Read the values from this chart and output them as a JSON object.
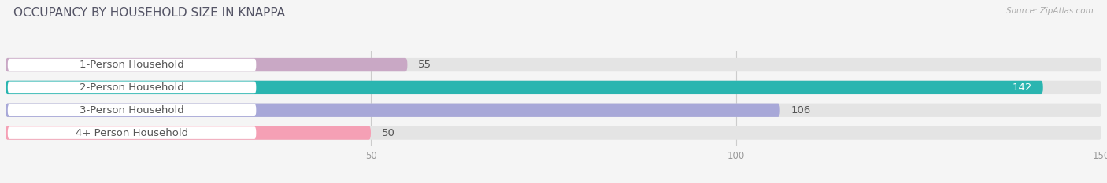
{
  "title": "OCCUPANCY BY HOUSEHOLD SIZE IN KNAPPA",
  "source": "Source: ZipAtlas.com",
  "categories": [
    "1-Person Household",
    "2-Person Household",
    "3-Person Household",
    "4+ Person Household"
  ],
  "values": [
    55,
    142,
    106,
    50
  ],
  "bar_colors": [
    "#c9a8c5",
    "#2ab5b0",
    "#a8a8d8",
    "#f5a0b5"
  ],
  "label_bg_color": "#ffffff",
  "background_color": "#f5f5f5",
  "bar_bg_color": "#e4e4e4",
  "xlim": [
    0,
    150
  ],
  "xticks": [
    50,
    100,
    150
  ],
  "label_fontsize": 9.5,
  "value_fontsize": 9.5,
  "title_fontsize": 11,
  "title_color": "#555566",
  "source_color": "#aaaaaa",
  "tick_color": "#999999",
  "label_text_color": "#555555"
}
